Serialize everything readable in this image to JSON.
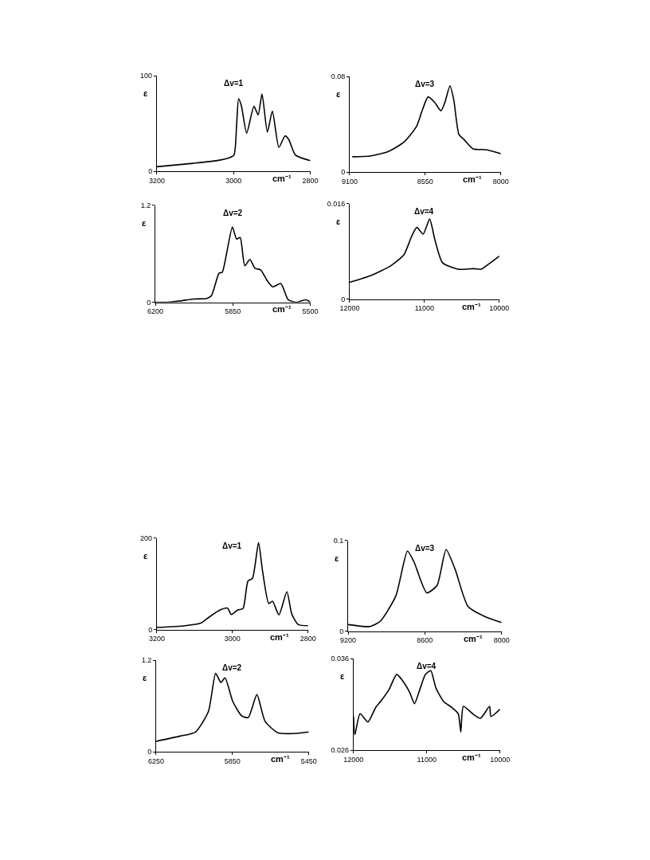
{
  "chart_data": [
    {
      "type": "line",
      "title": "Δv=1",
      "ylabel": "ε",
      "xlabel": "cm⁻¹",
      "xlim": [
        3200,
        2800
      ],
      "xticks": [
        3200,
        3000,
        2800
      ],
      "ylim": [
        0,
        100
      ],
      "yticks": [
        0,
        100
      ],
      "series": [
        {
          "color": "#000000",
          "x": [
            3200,
            3106,
            3046,
            3012,
            2999,
            2992,
            2987,
            2980,
            2966,
            2947,
            2936,
            2926,
            2912,
            2899,
            2882,
            2866,
            2856,
            2839,
            2800
          ],
          "values": [
            4.7,
            8.3,
            11,
            14,
            17,
            50,
            76,
            69,
            40,
            68,
            59,
            81,
            41,
            63,
            25,
            37,
            33,
            17,
            11
          ]
        }
      ]
    },
    {
      "type": "line",
      "title": "Δv=3",
      "ylabel": "ε",
      "xlabel": "cm⁻¹",
      "xlim": [
        9100,
        8000
      ],
      "xticks": [
        9100,
        8550,
        8000
      ],
      "ylim": [
        0,
        0.08
      ],
      "yticks": [
        0,
        0.08
      ],
      "series": [
        {
          "color": "#000000",
          "x": [
            9081,
            8950,
            8819,
            8707,
            8614,
            8576,
            8529,
            8482,
            8436,
            8408,
            8370,
            8342,
            8305,
            8267,
            8202,
            8108,
            8000
          ],
          "values": [
            0.0128,
            0.0134,
            0.0172,
            0.0249,
            0.0381,
            0.0503,
            0.063,
            0.0584,
            0.0513,
            0.058,
            0.0723,
            0.0602,
            0.0315,
            0.0271,
            0.0194,
            0.0187,
            0.0154
          ]
        }
      ]
    },
    {
      "type": "line",
      "title": "Δv=2",
      "ylabel": "ε",
      "xlabel": "cm⁻¹",
      "xlim": [
        6200,
        5500
      ],
      "xticks": [
        6200,
        5850,
        5500
      ],
      "ylim": [
        0,
        1.2
      ],
      "yticks": [
        0,
        1.2
      ],
      "series": [
        {
          "color": "#000000",
          "x": [
            6200,
            6144,
            6086,
            6028,
            5970,
            5947,
            5912,
            5898,
            5877,
            5852,
            5833,
            5817,
            5796,
            5773,
            5750,
            5725,
            5693,
            5670,
            5633,
            5600,
            5565,
            5519,
            5500
          ],
          "values": [
            0,
            0,
            0.016,
            0.04,
            0.045,
            0.08,
            0.36,
            0.37,
            0.62,
            0.93,
            0.78,
            0.8,
            0.45,
            0.53,
            0.42,
            0.4,
            0.26,
            0.19,
            0.23,
            0.03,
            0,
            0.03,
            0
          ]
        }
      ]
    },
    {
      "type": "line",
      "title": "Δv=4",
      "ylabel": "ε",
      "xlabel": "cm⁻¹",
      "xlim": [
        12000,
        10000
      ],
      "xticks": [
        12000,
        11000,
        10000
      ],
      "ylim": [
        0,
        0.016
      ],
      "yticks": [
        0,
        0.016
      ],
      "series": [
        {
          "color": "#000000",
          "x": [
            12000,
            11724,
            11448,
            11276,
            11172,
            11103,
            11017,
            10931,
            10862,
            10759,
            10552,
            10345,
            10241,
            10138,
            10000
          ],
          "values": [
            0.0028,
            0.0039,
            0.0056,
            0.0074,
            0.0105,
            0.012,
            0.0109,
            0.0134,
            0.01,
            0.0061,
            0.005,
            0.0051,
            0.005,
            0.0059,
            0.0072
          ]
        }
      ]
    },
    {
      "type": "line",
      "title": "Δv=1",
      "ylabel": "ε",
      "xlabel": "cm⁻¹",
      "xlim": [
        3200,
        2800
      ],
      "xticks": [
        3200,
        3000,
        2800
      ],
      "ylim": [
        0,
        200
      ],
      "yticks": [
        0,
        200
      ],
      "series": [
        {
          "color": "#000000",
          "x": [
            3200,
            3125,
            3084,
            3064,
            3033,
            3013,
            3003,
            2986,
            2972,
            2959,
            2947,
            2931,
            2921,
            2904,
            2894,
            2877,
            2856,
            2843,
            2826,
            2800
          ],
          "values": [
            4.6,
            8.6,
            14,
            26,
            43,
            47,
            33,
            43,
            46,
            106,
            112,
            190,
            132,
            57,
            62,
            32,
            83,
            34,
            11,
            8.6
          ]
        }
      ]
    },
    {
      "type": "line",
      "title": "Δv=3",
      "ylabel": "ε",
      "xlabel": "cm⁻¹",
      "xlim": [
        9200,
        8000
      ],
      "xticks": [
        9200,
        8600,
        8000
      ],
      "ylim": [
        0,
        0.1
      ],
      "yticks": [
        0,
        0.1
      ],
      "series": [
        {
          "color": "#000000",
          "x": [
            9200,
            9029,
            8948,
            8827,
            8736,
            8686,
            8585,
            8505,
            8434,
            8363,
            8262,
            8121,
            8000
          ],
          "values": [
            0.0073,
            0.0052,
            0.0111,
            0.0388,
            0.0883,
            0.0767,
            0.0423,
            0.0504,
            0.0898,
            0.068,
            0.0271,
            0.0155,
            0.0096
          ]
        }
      ]
    },
    {
      "type": "line",
      "title": "Δv=2",
      "ylabel": "ε",
      "xlabel": "cm⁻¹",
      "xlim": [
        6250,
        5450
      ],
      "xticks": [
        6250,
        5850,
        5450
      ],
      "ylim": [
        0,
        1.2
      ],
      "yticks": [
        0,
        1.2
      ],
      "series": [
        {
          "color": "#000000",
          "x": [
            6250,
            6125,
            6044,
            5976,
            5938,
            5911,
            5889,
            5848,
            5801,
            5767,
            5722,
            5679,
            5612,
            5531,
            5450
          ],
          "values": [
            0.138,
            0.207,
            0.26,
            0.53,
            1.03,
            0.91,
            0.97,
            0.66,
            0.47,
            0.45,
            0.75,
            0.4,
            0.25,
            0.24,
            0.26
          ]
        }
      ]
    },
    {
      "type": "line",
      "title": "Δv=4",
      "ylabel": "ε",
      "xlabel": "cm⁻¹",
      "xlim": [
        12000,
        10000
      ],
      "xticks": [
        12000,
        11000,
        10000
      ],
      "ylim": [
        0.026,
        0.036
      ],
      "yticks": [
        0.026,
        0.036
      ],
      "series": [
        {
          "color": "#000000",
          "x": [
            12000,
            11982,
            11911,
            11804,
            11696,
            11625,
            11518,
            11411,
            11339,
            11232,
            11168,
            11089,
            11018,
            10946,
            10875,
            10768,
            10661,
            10571,
            10536,
            10500,
            10375,
            10268,
            10143,
            10125,
            10000
          ],
          "values": [
            0.0297,
            0.0277,
            0.03,
            0.0291,
            0.0307,
            0.0314,
            0.0326,
            0.0343,
            0.0337,
            0.0323,
            0.0311,
            0.0328,
            0.0343,
            0.0347,
            0.0328,
            0.0313,
            0.0307,
            0.03,
            0.028,
            0.0308,
            0.03,
            0.0295,
            0.0308,
            0.0297,
            0.0305
          ]
        }
      ]
    }
  ]
}
